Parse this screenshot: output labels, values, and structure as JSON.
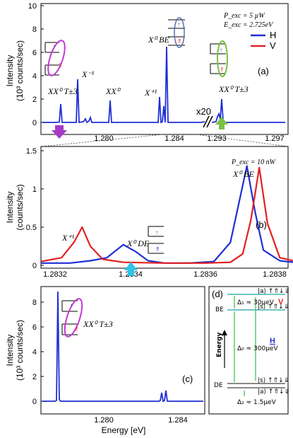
{
  "chart_data": [
    {
      "panel": "(a)",
      "type": "line",
      "xlabel": "",
      "ylabel": "Intensity",
      "ylabel2": "(10³ counts/sec)",
      "xticks": [
        "1.280",
        "1.284",
        "1.293",
        "1.297"
      ],
      "yticks": [
        "0",
        "2",
        "4",
        "6",
        "8",
        "10"
      ],
      "ylim": [
        0,
        10
      ],
      "break_label": "x20",
      "params": [
        "P_exc = 5 µW",
        "E_exc = 2.725eV"
      ],
      "legend": [
        {
          "name": "H",
          "color": "#1f2fd6"
        },
        {
          "name": "V",
          "color": "#e32020"
        }
      ],
      "peaks": [
        {
          "label": "XX⁰ T±3",
          "x": 1.2776,
          "y": 1.6
        },
        {
          "label": "X⁻¹",
          "x": 1.2784,
          "y": 3.7
        },
        {
          "label": "XX⁰",
          "x": 1.2799,
          "y": 1.9
        },
        {
          "label": "X⁺¹",
          "x": 1.2832,
          "y": 2.2
        },
        {
          "label": "X⁰ BE",
          "x": 1.2837,
          "y": 6.5
        },
        {
          "label": "XX⁰ T±3",
          "x": 1.2939,
          "y": 1.5
        }
      ]
    },
    {
      "panel": "(b)",
      "type": "line",
      "xlabel": "",
      "ylabel": "Intensity",
      "ylabel2": "(counts/sec)",
      "xlim": [
        1.2832,
        1.2838
      ],
      "ylim": [
        0,
        1.6
      ],
      "xticks": [
        "1.2832",
        "1.2834",
        "1.2836",
        "1.2838"
      ],
      "yticks": [
        "0",
        "0.5",
        "1",
        "1.5"
      ],
      "params": [
        "P_exc = 10 nW"
      ],
      "series": [
        {
          "name": "H",
          "color": "#1f2fd6",
          "x": [
            1.2832,
            1.28327,
            1.28332,
            1.28336,
            1.2834,
            1.28343,
            1.28346,
            1.2835,
            1.28356,
            1.28362,
            1.28366,
            1.28368,
            1.2837,
            1.28372,
            1.28374,
            1.28378,
            1.28383
          ],
          "y": [
            0.03,
            0.03,
            0.06,
            0.1,
            0.27,
            0.18,
            0.06,
            0.03,
            0.03,
            0.05,
            0.3,
            0.8,
            1.3,
            0.7,
            0.2,
            0.06,
            0.03
          ]
        },
        {
          "name": "V",
          "color": "#e32020",
          "x": [
            1.2832,
            1.28325,
            1.28328,
            1.2833,
            1.28332,
            1.28335,
            1.2834,
            1.2835,
            1.2836,
            1.28366,
            1.28369,
            1.28371,
            1.28373,
            1.28375,
            1.28378,
            1.28383
          ],
          "y": [
            0.05,
            0.1,
            0.3,
            0.5,
            0.25,
            0.08,
            0.04,
            0.03,
            0.03,
            0.04,
            0.15,
            0.6,
            1.28,
            0.55,
            0.1,
            0.04
          ]
        }
      ],
      "peaks": [
        {
          "label": "X⁺¹",
          "x": 1.2833,
          "y": 0.5
        },
        {
          "label": "X⁰ DE",
          "x": 1.2834,
          "y": 0.27
        },
        {
          "label": "X⁰ BE",
          "x": 1.28373,
          "y": 1.28
        }
      ]
    },
    {
      "panel": "(c)",
      "type": "line",
      "xlabel": "Energy [eV]",
      "ylabel": "Intensity",
      "ylabel2": "(10³ counts/sec)",
      "xticks": [
        "1.280",
        "1.284"
      ],
      "yticks": [
        "0",
        "2",
        "4",
        "6",
        "8"
      ],
      "ylim": [
        0,
        10
      ],
      "peaks": [
        {
          "label": "XX⁰ T±3",
          "x": 1.2776,
          "y": 9.0
        }
      ]
    },
    {
      "panel": "(d)",
      "type": "diagram",
      "axis_label": "Energy",
      "levels": [
        "BE",
        "DE"
      ],
      "states": [
        "|a⟩ ↑⇑↓⇓",
        "|s⟩ ↑⇑↓⇓",
        "|s⟩ ↑⇑↓⇓",
        "|a⟩ ↑⇑↓⇓"
      ],
      "splittings": [
        "Δ₁ ≈ 30µeV",
        "Δ₀ ≈ 300µeV",
        "Δ₂ ≈ 1.5µeV"
      ],
      "polarizations": [
        "V",
        "H"
      ]
    }
  ]
}
